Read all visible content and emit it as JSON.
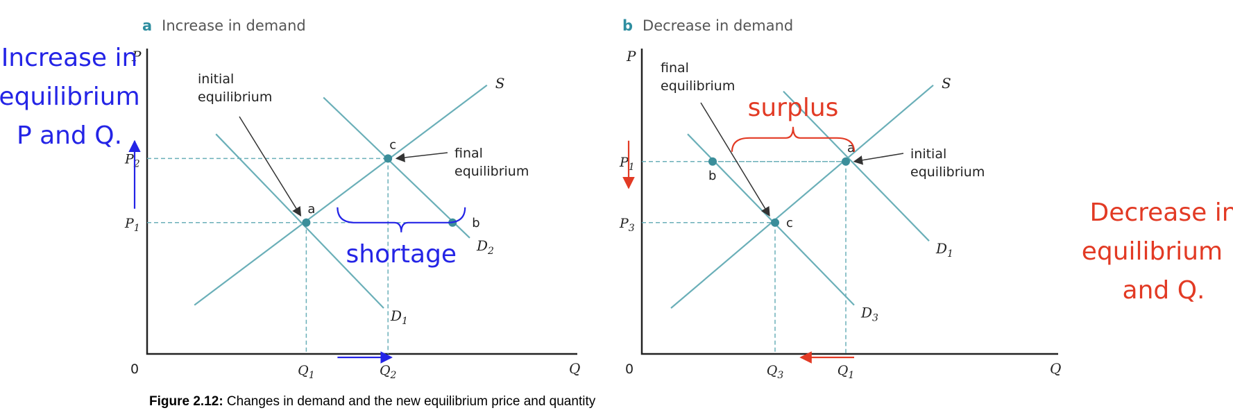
{
  "chart_data": [
    {
      "type": "line",
      "panel_letter": "a",
      "title": "Increase in demand",
      "xlabel": "Q",
      "ylabel": "P",
      "origin_label": "0",
      "xlim": [
        0,
        10
      ],
      "ylim": [
        0,
        10
      ],
      "x_ticks": [
        {
          "main": "Q",
          "sub": "1",
          "value": 3.7
        },
        {
          "main": "Q",
          "sub": "2",
          "value": 5.6
        }
      ],
      "y_ticks": [
        {
          "main": "P",
          "sub": "1",
          "value": 4.3
        },
        {
          "main": "P",
          "sub": "2",
          "value": 6.4
        }
      ],
      "series": [
        {
          "name": "S",
          "label_main": "S",
          "label_sub": "",
          "points": [
            [
              1.1,
              1.6
            ],
            [
              7.9,
              8.8
            ]
          ]
        },
        {
          "name": "D1",
          "label_main": "D",
          "label_sub": "1",
          "points": [
            [
              1.6,
              7.2
            ],
            [
              5.5,
              1.5
            ]
          ]
        },
        {
          "name": "D2",
          "label_main": "D",
          "label_sub": "2",
          "points": [
            [
              4.1,
              8.4
            ],
            [
              7.5,
              3.8
            ]
          ]
        }
      ],
      "equilibria": [
        {
          "label": "a",
          "x": 3.7,
          "y": 4.3,
          "guides": true
        },
        {
          "label": "c",
          "x": 5.6,
          "y": 6.4,
          "guides": true
        },
        {
          "label": "b",
          "x": 7.1,
          "y": 4.3,
          "guides": false
        }
      ],
      "annotations": [
        {
          "text": "initial\nequilibrium",
          "points_to": "a"
        },
        {
          "text": "final\nequilibrium",
          "points_to": "c"
        }
      ],
      "handwritten": {
        "gap_label": "shortage",
        "side_note": "Increase in\nequilibrium\nP and Q."
      }
    },
    {
      "type": "line",
      "panel_letter": "b",
      "title": "Decrease in demand",
      "xlabel": "Q",
      "ylabel": "P",
      "origin_label": "0",
      "xlim": [
        0,
        10
      ],
      "ylim": [
        0,
        10
      ],
      "x_ticks": [
        {
          "main": "Q",
          "sub": "3",
          "value": 3.2
        },
        {
          "main": "Q",
          "sub": "1",
          "value": 4.9
        }
      ],
      "y_ticks": [
        {
          "main": "P",
          "sub": "1",
          "value": 6.3
        },
        {
          "main": "P",
          "sub": "3",
          "value": 4.3
        }
      ],
      "series": [
        {
          "name": "S",
          "label_main": "S",
          "label_sub": "",
          "points": [
            [
              0.7,
              1.5
            ],
            [
              7.0,
              8.8
            ]
          ]
        },
        {
          "name": "D1",
          "label_main": "D",
          "label_sub": "1",
          "points": [
            [
              3.4,
              8.6
            ],
            [
              6.9,
              3.7
            ]
          ]
        },
        {
          "name": "D3",
          "label_main": "D",
          "label_sub": "3",
          "points": [
            [
              1.1,
              7.2
            ],
            [
              5.1,
              1.6
            ]
          ]
        }
      ],
      "equilibria": [
        {
          "label": "a",
          "x": 4.9,
          "y": 6.3,
          "guides": true
        },
        {
          "label": "c",
          "x": 3.2,
          "y": 4.3,
          "guides": true
        },
        {
          "label": "b",
          "x": 1.7,
          "y": 6.3,
          "guides": false
        }
      ],
      "annotations": [
        {
          "text": "initial\nequilibrium",
          "points_to": "a"
        },
        {
          "text": "final\nequilibrium",
          "points_to": "c"
        }
      ],
      "handwritten": {
        "gap_label": "surplus",
        "side_note": "Decrease in\nequilibrium P\nand Q."
      }
    }
  ],
  "caption": {
    "bold": "Figure 2.12:",
    "text": " Changes in demand and the new equilibrium price and quantity"
  },
  "colors": {
    "curve": "#6aafb8",
    "dot": "#3b8e9a",
    "axis": "#222222",
    "blue_annotation": "#2424e6",
    "red_annotation": "#e23a24"
  }
}
